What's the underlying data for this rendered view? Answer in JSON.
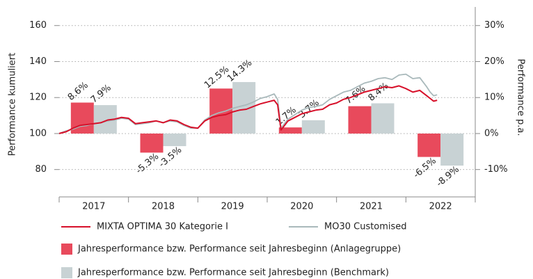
{
  "chart_data": {
    "type": "combo",
    "categories": [
      "2017",
      "2018",
      "2019",
      "2020",
      "2021",
      "2022"
    ],
    "x": [
      2017.0,
      2017.1,
      2017.2,
      2017.3,
      2017.4,
      2017.5,
      2017.6,
      2017.7,
      2017.8,
      2017.9,
      2018.0,
      2018.1,
      2018.2,
      2018.3,
      2018.4,
      2018.5,
      2018.6,
      2018.7,
      2018.8,
      2018.9,
      2019.0,
      2019.1,
      2019.2,
      2019.3,
      2019.4,
      2019.5,
      2019.6,
      2019.7,
      2019.8,
      2019.9,
      2020.0,
      2020.1,
      2020.15,
      2020.2,
      2020.3,
      2020.4,
      2020.5,
      2020.6,
      2020.7,
      2020.8,
      2020.9,
      2021.0,
      2021.1,
      2021.2,
      2021.3,
      2021.4,
      2021.5,
      2021.6,
      2021.7,
      2021.8,
      2021.9,
      2022.0,
      2022.1,
      2022.2,
      2022.3,
      2022.35,
      2022.4,
      2022.45
    ],
    "xlim": [
      2017,
      2023
    ],
    "ylabel": "Performance kumuliert",
    "y2label": "Performance p.a.",
    "ylim": [
      64.8,
      168.4
    ],
    "yticks": [
      80,
      100,
      120,
      140,
      160
    ],
    "y2lim": [
      -17.6,
      34.2
    ],
    "y2ticks": [
      {
        "value": -10,
        "label": "-10%"
      },
      {
        "value": 0,
        "label": "0%"
      },
      {
        "value": 10,
        "label": "10%"
      },
      {
        "value": 20,
        "label": "20%"
      },
      {
        "value": 30,
        "label": "30%"
      }
    ],
    "grid": true,
    "series": [
      {
        "name": "MIXTA OPTIMA 30 Kategorie I",
        "type": "line",
        "axis": "y",
        "color": "#d7102a",
        "values": [
          100,
          101,
          103,
          104.5,
          105,
          105.5,
          106,
          107.5,
          108,
          109,
          108.5,
          105.5,
          106,
          106.5,
          107,
          106,
          107.5,
          107,
          105,
          103.5,
          103,
          107,
          109,
          110,
          110.5,
          112,
          113,
          113.5,
          115,
          116.5,
          117.5,
          118.5,
          116,
          102,
          107,
          109,
          111,
          112,
          113,
          113.5,
          116,
          117,
          119,
          120,
          121.5,
          123,
          124,
          125,
          126,
          125.5,
          126.5,
          125,
          123,
          124,
          121,
          119.5,
          118,
          118.5
        ]
      },
      {
        "name": "MO30 Customised",
        "type": "line",
        "axis": "y",
        "color": "#a9b9bb",
        "values": [
          100,
          101.5,
          102.5,
          104,
          104.5,
          105.5,
          106,
          107,
          107.5,
          108.5,
          108,
          105,
          105.5,
          106,
          107,
          106,
          107,
          106.5,
          104.5,
          103,
          103,
          107.5,
          110,
          111.5,
          112.5,
          114,
          115,
          116,
          117.5,
          119.5,
          120.5,
          122,
          119,
          103,
          108,
          110.5,
          113,
          114.5,
          115,
          116,
          119,
          121,
          123,
          124,
          126,
          128,
          129,
          130.5,
          131,
          130,
          132.5,
          133,
          130.5,
          131,
          126,
          123,
          121,
          121.5
        ]
      },
      {
        "name": "Jahresperformance bzw. Performance seit Jahresbeginn (Anlagegruppe)",
        "type": "bar",
        "axis": "y2",
        "color": "#e84a5c",
        "values": [
          8.6,
          -5.3,
          12.5,
          1.7,
          7.6,
          -6.5
        ],
        "value_labels": [
          "8.6%",
          "-5.3%",
          "12.5%",
          "1.7%",
          "7.6%",
          "-6.5%"
        ]
      },
      {
        "name": "Jahresperformance bzw. Performance seit Jahresbeginn (Benchmark)",
        "type": "bar",
        "axis": "y2",
        "color": "#c8d2d4",
        "values": [
          7.9,
          -3.5,
          14.3,
          3.7,
          8.4,
          -8.9
        ],
        "value_labels": [
          "7.9%",
          "-3.5%",
          "14.3%",
          "3.7%",
          "8.4%",
          "-8.9%"
        ]
      }
    ]
  }
}
